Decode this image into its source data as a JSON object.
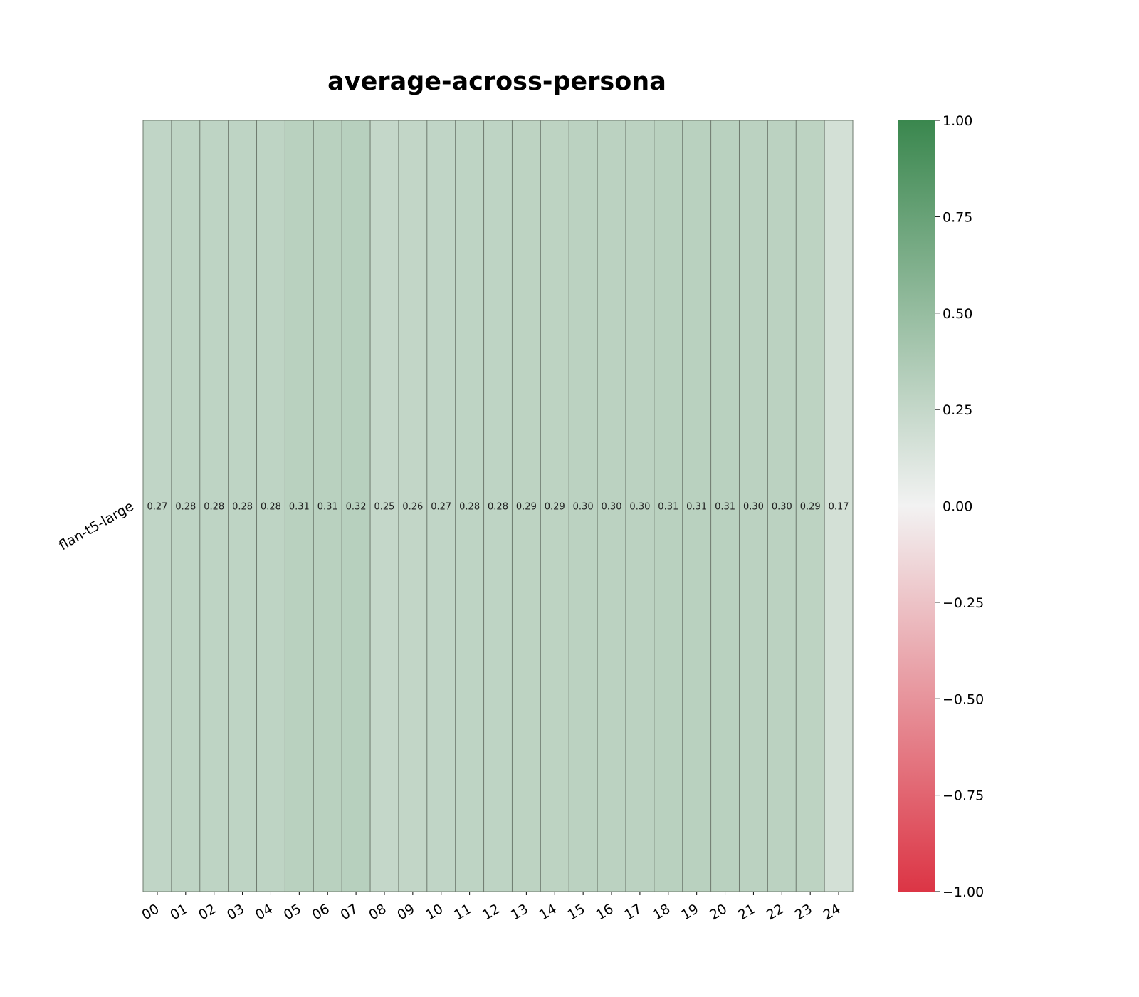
{
  "chart_data": {
    "type": "heatmap",
    "title": "average-across-persona",
    "xlabel": "",
    "ylabel": "",
    "rows": [
      "flan-t5-large"
    ],
    "columns": [
      "00",
      "01",
      "02",
      "03",
      "04",
      "05",
      "06",
      "07",
      "08",
      "09",
      "10",
      "11",
      "12",
      "13",
      "14",
      "15",
      "16",
      "17",
      "18",
      "19",
      "20",
      "21",
      "22",
      "23",
      "24"
    ],
    "values": [
      [
        0.27,
        0.28,
        0.28,
        0.28,
        0.28,
        0.31,
        0.31,
        0.32,
        0.25,
        0.26,
        0.27,
        0.28,
        0.28,
        0.29,
        0.29,
        0.3,
        0.3,
        0.3,
        0.31,
        0.31,
        0.31,
        0.3,
        0.3,
        0.29,
        0.17
      ]
    ],
    "value_labels": [
      [
        "0.27",
        "0.28",
        "0.28",
        "0.28",
        "0.28",
        "0.31",
        "0.31",
        "0.32",
        "0.25",
        "0.26",
        "0.27",
        "0.28",
        "0.28",
        "0.29",
        "0.29",
        "0.30",
        "0.30",
        "0.30",
        "0.31",
        "0.31",
        "0.31",
        "0.30",
        "0.30",
        "0.29",
        "0.17"
      ]
    ],
    "colorbar": {
      "vmin": -1.0,
      "vmax": 1.0,
      "ticks": [
        1.0,
        0.75,
        0.5,
        0.25,
        0.0,
        -0.25,
        -0.5,
        -0.75,
        -1.0
      ],
      "tick_labels": [
        "1.00",
        "0.75",
        "0.50",
        "0.25",
        "0.00",
        "−0.25",
        "−0.50",
        "−0.75",
        "−1.00"
      ],
      "colors": {
        "low": "#dc3545",
        "mid": "#f2f2f2",
        "high": "#3a874e"
      }
    },
    "grid": true,
    "gridline_color": "#6e7a6e",
    "legend": "none"
  }
}
